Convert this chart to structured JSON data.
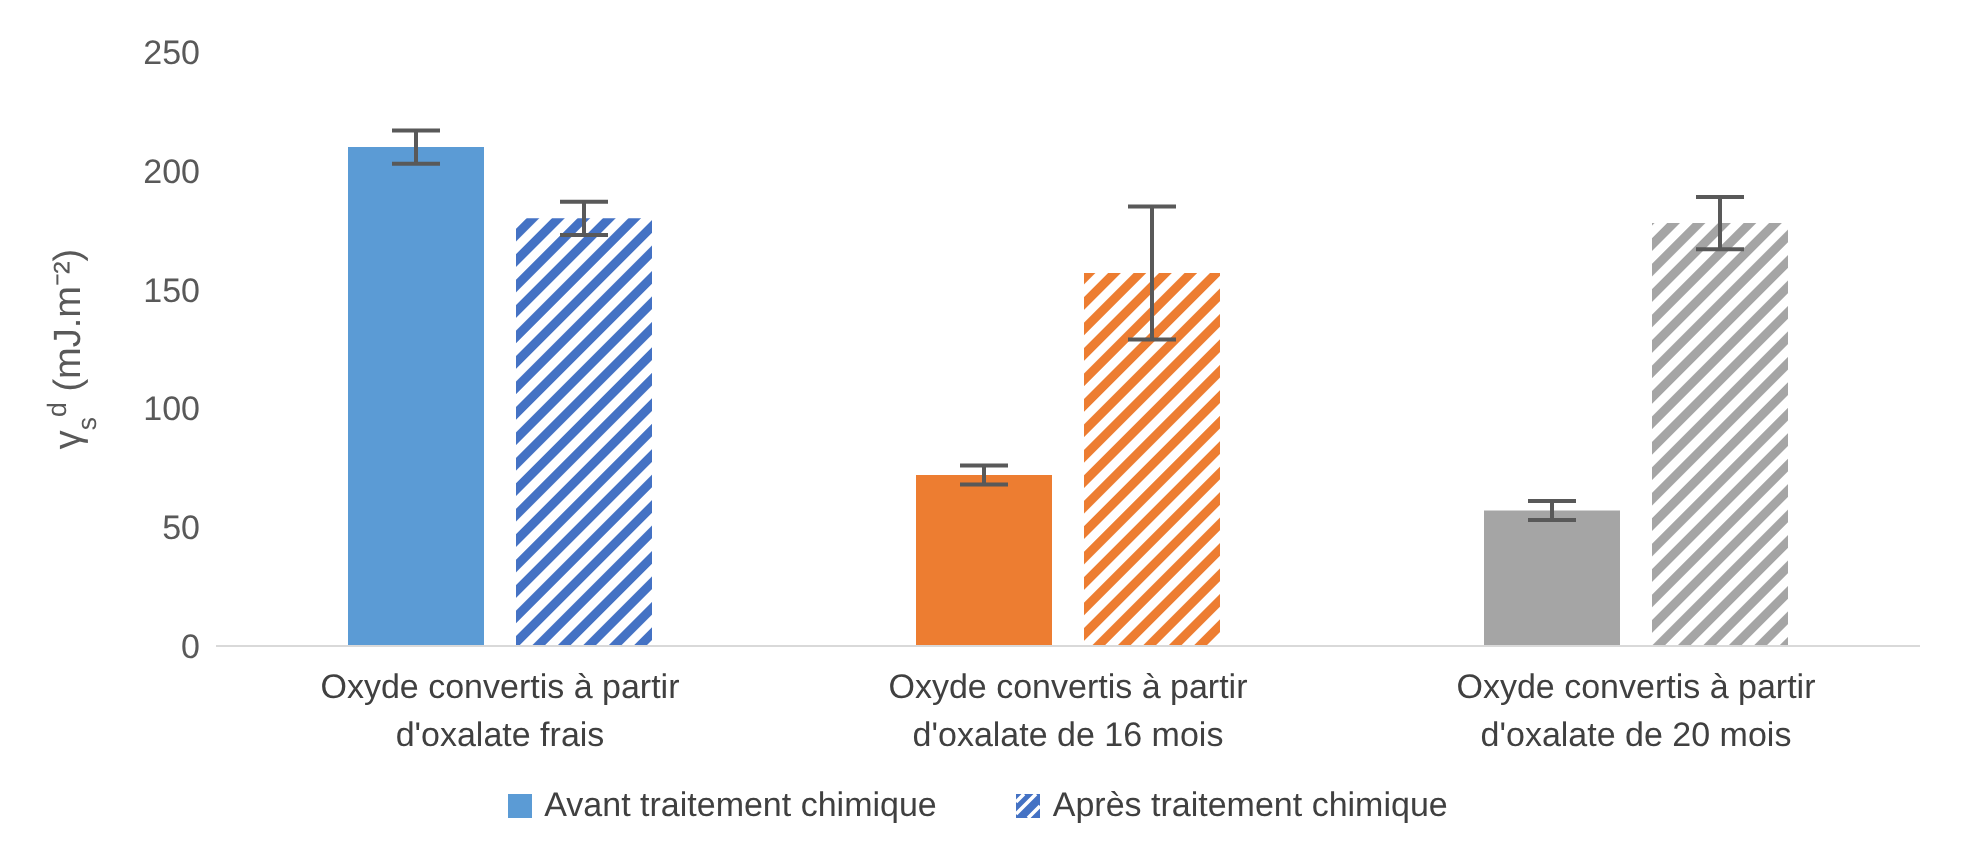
{
  "chart_data": {
    "type": "bar",
    "ylabel": "γ$_{s}$$^{d}$ (mJ.m⁻²)",
    "categories": [
      "Oxyde convertis à partir d'oxalate frais",
      "Oxyde convertis à partir d'oxalate de 16 mois",
      "Oxyde convertis à partir d'oxalate de 20 mois"
    ],
    "series": [
      {
        "name": "Avant traitement chimique",
        "color": "#5b9bd5",
        "colors": [
          "#5b9bd5",
          "#ed7d31",
          "#a5a5a5"
        ],
        "values": [
          210,
          72,
          57
        ],
        "errors": [
          7,
          4,
          4
        ]
      },
      {
        "name": "Après traitement chimique",
        "color": "#4472c4",
        "colors": [
          "#4472c4",
          "#ed7d31",
          "#a5a5a5"
        ],
        "values": [
          180,
          157,
          178
        ],
        "errors": [
          7,
          28,
          11
        ]
      }
    ],
    "ylim": [
      0,
      250
    ],
    "yticks": [
      0,
      50,
      100,
      150,
      200,
      250
    ],
    "legend": "bottom"
  }
}
